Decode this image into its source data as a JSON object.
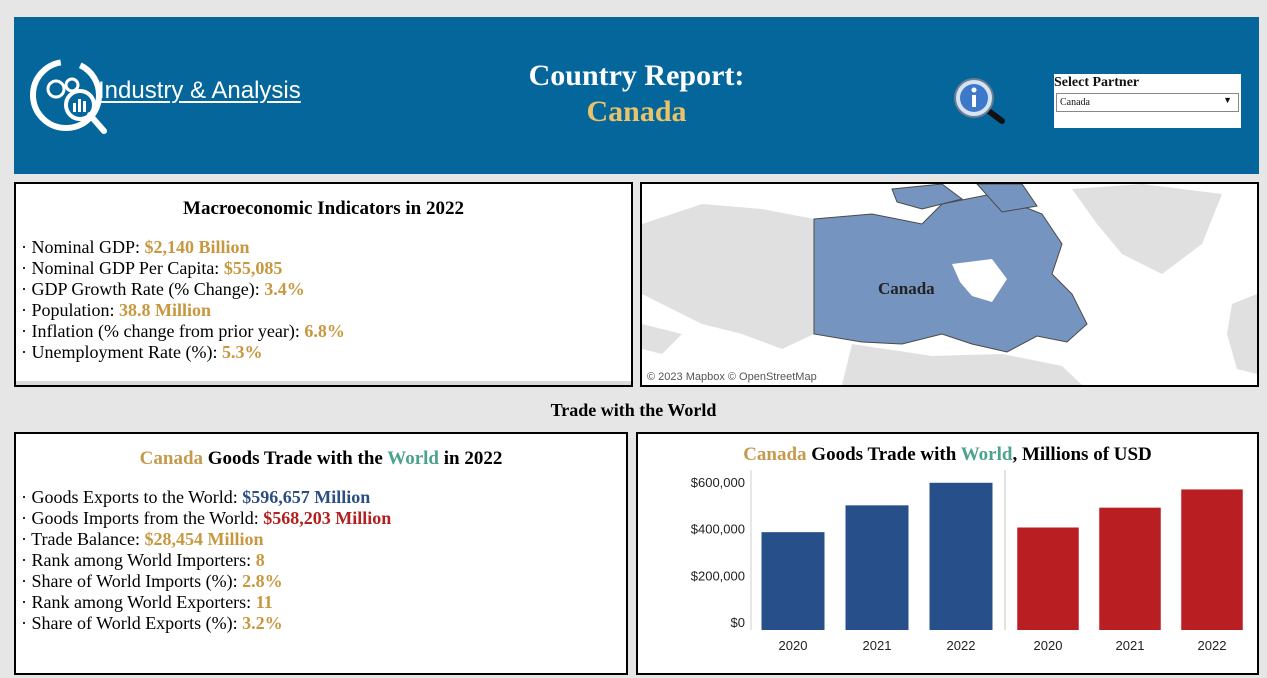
{
  "header": {
    "logo_text": "Industry & Analysis",
    "title": "Country Report:",
    "country": "Canada",
    "info_icon": "info-magnifier-icon",
    "partner_select": {
      "label": "Select Partner",
      "value": "Canada"
    }
  },
  "macro": {
    "title": "Macroeconomic Indicators in 2022",
    "items": [
      {
        "label": "· Nominal GDP: ",
        "value": "$2,140 Billion"
      },
      {
        "label": "· Nominal GDP Per Capita: ",
        "value": "$55,085"
      },
      {
        "label": "· GDP Growth Rate (% Change): ",
        "value": "3.4%"
      },
      {
        "label": "· Population: ",
        "value": "38.8 Million"
      },
      {
        "label": "· Inflation (% change from prior year): ",
        "value": "6.8%"
      },
      {
        "label": "· Unemployment Rate (%): ",
        "value": "5.3%"
      }
    ]
  },
  "map": {
    "country_label": "Canada",
    "attribution": "© 2023 Mapbox  © OpenStreetMap",
    "colors": {
      "highlight": "#7594bf",
      "land": "#e0e0e0",
      "water": "#ffffff"
    }
  },
  "section_title": "Trade with the World",
  "trade": {
    "title": {
      "country": "Canada",
      "mid": " Goods Trade with the ",
      "world": "World",
      "end": " in 2022"
    },
    "items": [
      {
        "label": "· Goods Exports to the World: ",
        "value": "$596,657 Million",
        "color": "blue"
      },
      {
        "label": "· Goods Imports from the World: ",
        "value": "$568,203 Million",
        "color": "red"
      },
      {
        "label": "· Trade Balance:  ",
        "value": "$28,454 Million",
        "color": "gold"
      },
      {
        "label": "· Rank among World Importers: ",
        "value": "8",
        "color": "gold"
      },
      {
        "label": "· Share of World Imports (%): ",
        "value": "2.8%",
        "color": "gold"
      },
      {
        "label": "· Rank among World Exporters: ",
        "value": "11",
        "color": "gold"
      },
      {
        "label": "· Share of World Exports (%): ",
        "value": "3.2%",
        "color": "gold"
      }
    ]
  },
  "chart_title": {
    "country": "Canada",
    "mid": " Goods Trade with ",
    "world": "World",
    "end": ", Millions of USD"
  },
  "chart_data": {
    "type": "bar",
    "title": "Canada Goods Trade with World, Millions of USD",
    "ylim": [
      0,
      600000
    ],
    "yticks": [
      "$600,000",
      "$400,000",
      "$200,000",
      "$0"
    ],
    "ytick_values": [
      600000,
      400000,
      200000,
      0
    ],
    "grid": false,
    "panes": [
      {
        "categories": [
          "2020",
          "2021",
          "2022"
        ],
        "values": [
          385000,
          500000,
          596657
        ],
        "color": "#27508a"
      },
      {
        "categories": [
          "2020",
          "2021",
          "2022"
        ],
        "values": [
          405000,
          490000,
          568203
        ],
        "color": "#b91f22"
      }
    ]
  }
}
